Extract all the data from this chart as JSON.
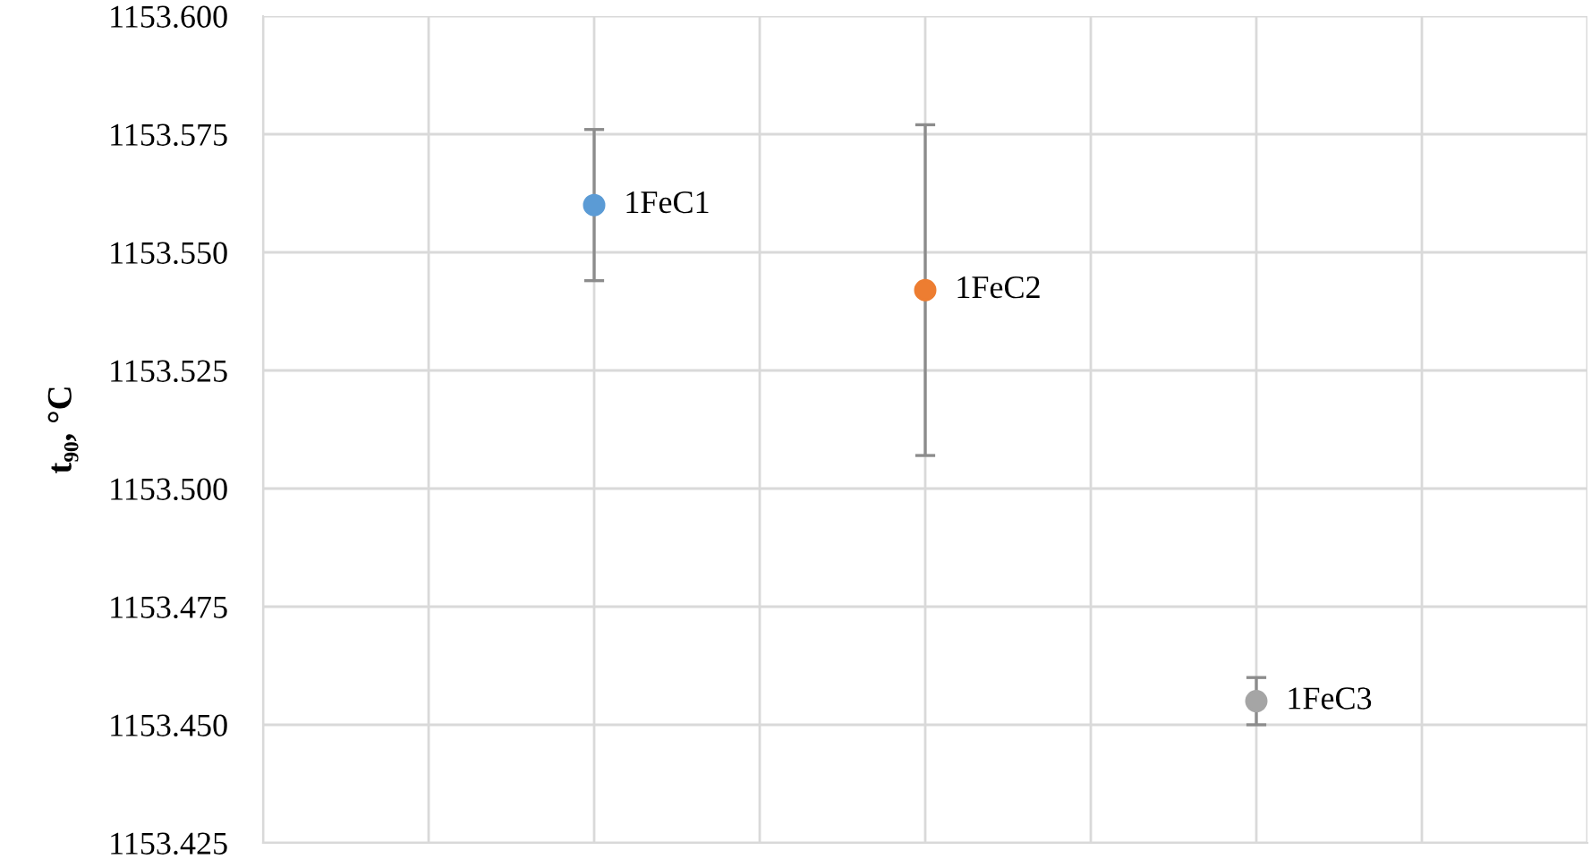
{
  "chart_data": {
    "type": "scatter",
    "ylabel": "t₉₀, °C",
    "categories": [
      null,
      null,
      null
    ],
    "ylim": [
      1153.425,
      1153.6
    ],
    "yticks": [
      {
        "value": 1153.425,
        "label": "1153.425"
      },
      {
        "value": 1153.45,
        "label": "1153.450"
      },
      {
        "value": 1153.475,
        "label": "1153.475"
      },
      {
        "value": 1153.5,
        "label": "1153.500"
      },
      {
        "value": 1153.525,
        "label": "1153.525"
      },
      {
        "value": 1153.55,
        "label": "1153.550"
      },
      {
        "value": 1153.575,
        "label": "1153.575"
      },
      {
        "value": 1153.6,
        "label": "1153.600"
      }
    ],
    "tick_labels": "y",
    "grid": true,
    "marker": "circle",
    "series": [
      {
        "name": "1FeC1",
        "color": "#5b9bd5",
        "values": [
          1153.56,
          null,
          null
        ],
        "errors": [
          0.016,
          null,
          null
        ]
      },
      {
        "name": "1FeC2",
        "color": "#ed7d31",
        "values": [
          null,
          1153.542,
          null
        ],
        "errors": [
          null,
          0.035,
          null
        ]
      },
      {
        "name": "1FeC3",
        "color": "#a5a5a5",
        "values": [
          null,
          null,
          1153.455
        ],
        "errors": [
          null,
          null,
          0.005
        ]
      }
    ]
  }
}
